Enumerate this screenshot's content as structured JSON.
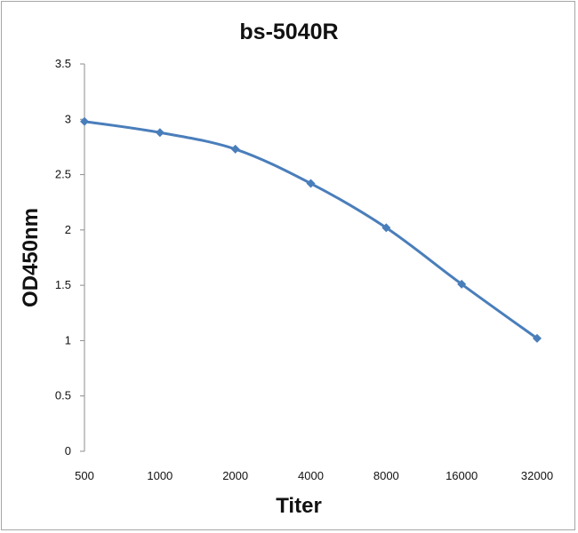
{
  "chart_data": {
    "type": "line",
    "title": "bs-5040R",
    "xlabel": "Titer",
    "ylabel": "OD450nm",
    "categories": [
      "500",
      "1000",
      "2000",
      "4000",
      "8000",
      "16000",
      "32000"
    ],
    "series": [
      {
        "values": [
          2.98,
          2.88,
          2.73,
          2.42,
          2.02,
          1.51,
          1.02
        ],
        "color": "#4a7ebb",
        "marker": "diamond"
      }
    ],
    "ylim": [
      0,
      3.5
    ],
    "yticks": [
      "0",
      "0.5",
      "1",
      "1.5",
      "2",
      "2.5",
      "3",
      "3.5"
    ],
    "grid": false,
    "legend": "none",
    "smooth": true
  }
}
